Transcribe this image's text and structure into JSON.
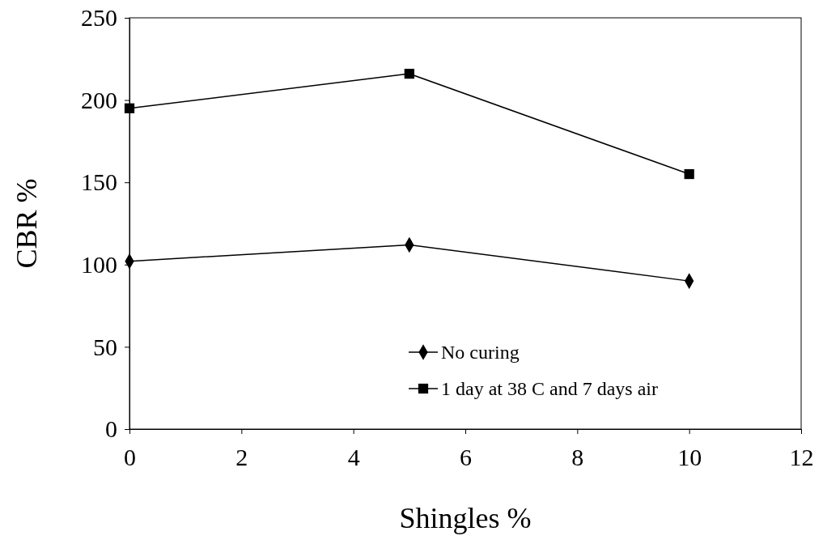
{
  "chart_data": {
    "type": "line",
    "xlabel": "Shingles %",
    "ylabel": "CBR %",
    "x": [
      0,
      5,
      10
    ],
    "series": [
      {
        "name": "No curing",
        "color": "#000000",
        "values": [
          102,
          112,
          90
        ],
        "marker": "diamond"
      },
      {
        "name": "1 day at 38 C and 7 days air",
        "color": "#000000",
        "values": [
          195,
          216,
          155
        ],
        "marker": "square"
      }
    ],
    "xlim": [
      0,
      12
    ],
    "xticks": [
      0,
      2,
      4,
      6,
      8,
      10,
      12
    ],
    "ylim": [
      0,
      250
    ],
    "yticks": [
      0,
      50,
      100,
      150,
      200,
      250
    ],
    "grid": false,
    "legend": "bottom",
    "line_style": "solid"
  }
}
